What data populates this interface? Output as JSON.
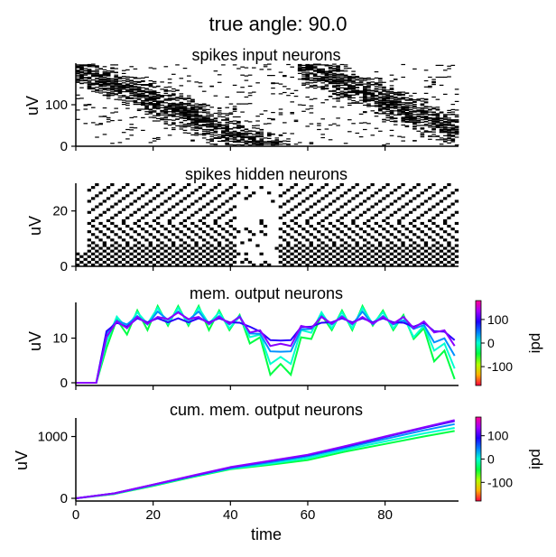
{
  "figure": {
    "suptitle": "true angle: 90.0"
  },
  "chart_data": [
    {
      "type": "heatmap",
      "title": "spikes input neurons",
      "ylabel": "uV",
      "xlim": [
        0,
        99
      ],
      "ylim": [
        0,
        200
      ],
      "yticks": [
        0,
        100
      ],
      "description": "raster of input spikes; two diagonal bands of activity",
      "colors": {
        "spike": "#000000"
      }
    },
    {
      "type": "heatmap",
      "title": "spikes hidden neurons",
      "ylabel": "uV",
      "xlim": [
        0,
        99
      ],
      "ylim": [
        0,
        30
      ],
      "yticks": [
        0,
        20
      ],
      "colors": {
        "spike": "#000000"
      }
    },
    {
      "type": "line",
      "title": "mem. output neurons",
      "ylabel": "uV",
      "xlim": [
        0,
        99
      ],
      "ylim": [
        0,
        18
      ],
      "yticks": [
        0,
        10
      ],
      "colorbar": {
        "label": "ipd",
        "ticks": [
          100,
          0,
          -100
        ],
        "range": [
          -180,
          180
        ],
        "colormap": "gist_rainbow"
      },
      "series": [
        {
          "ipd": -90,
          "color": "#00ff44",
          "values": [
            0,
            0,
            0,
            10,
            12,
            13,
            14,
            14,
            15,
            15,
            15,
            15,
            15,
            14,
            14,
            14,
            13,
            11,
            8,
            4,
            2,
            4,
            8,
            12,
            13,
            14,
            14,
            14,
            15,
            15,
            14,
            14,
            13,
            12,
            10,
            7,
            5,
            3
          ]
        },
        {
          "ipd": 0,
          "color": "#00ffd0",
          "values": [
            0,
            0,
            0,
            11,
            13,
            14,
            14,
            15,
            15,
            15,
            15,
            15,
            15,
            15,
            14,
            14,
            13,
            12,
            9,
            6,
            4,
            6,
            10,
            13,
            14,
            14,
            14,
            14,
            15,
            15,
            14,
            14,
            13,
            12,
            11,
            9,
            7,
            5
          ]
        },
        {
          "ipd": 45,
          "color": "#0090ff",
          "values": [
            0,
            0,
            0,
            12,
            13,
            14,
            14,
            14,
            15,
            15,
            15,
            15,
            15,
            14,
            14,
            14,
            14,
            12,
            10,
            8,
            6,
            8,
            11,
            13,
            14,
            14,
            14,
            14,
            15,
            14,
            14,
            14,
            13,
            13,
            12,
            10,
            9,
            7
          ]
        },
        {
          "ipd": 90,
          "color": "#2a00ff",
          "values": [
            0,
            0,
            0,
            12,
            13,
            13,
            14,
            14,
            14,
            14,
            14,
            14,
            14,
            14,
            14,
            14,
            13,
            13,
            11,
            10,
            9,
            10,
            12,
            13,
            13,
            14,
            14,
            14,
            14,
            14,
            14,
            14,
            13,
            13,
            13,
            12,
            11,
            10
          ]
        },
        {
          "ipd": 135,
          "color": "#8a00ff",
          "values": [
            0,
            0,
            0,
            11,
            13,
            13,
            14,
            14,
            14,
            15,
            15,
            15,
            14,
            14,
            14,
            14,
            14,
            12,
            11,
            9,
            8,
            9,
            12,
            13,
            14,
            14,
            14,
            14,
            14,
            14,
            14,
            14,
            14,
            13,
            13,
            12,
            11,
            9
          ]
        }
      ]
    },
    {
      "type": "line",
      "title": "cum. mem. output neurons",
      "xlabel": "time",
      "ylabel": "uV",
      "xlim": [
        0,
        99
      ],
      "ylim": [
        0,
        1300
      ],
      "yticks": [
        0,
        1000
      ],
      "xticks": [
        0,
        20,
        40,
        60,
        80
      ],
      "colorbar": {
        "label": "ipd",
        "ticks": [
          100,
          0,
          -100
        ],
        "range": [
          -180,
          180
        ],
        "colormap": "gist_rainbow"
      },
      "series": [
        {
          "ipd": -90,
          "color": "#00ff44",
          "x": [
            0,
            10,
            20,
            30,
            40,
            50,
            60,
            70,
            80,
            90,
            98
          ],
          "values": [
            0,
            70,
            200,
            340,
            470,
            540,
            620,
            760,
            880,
            1000,
            1090
          ]
        },
        {
          "ipd": 0,
          "color": "#00ffd0",
          "x": [
            0,
            10,
            20,
            30,
            40,
            50,
            60,
            70,
            80,
            90,
            98
          ],
          "values": [
            0,
            75,
            210,
            350,
            480,
            560,
            650,
            790,
            920,
            1050,
            1140
          ]
        },
        {
          "ipd": 45,
          "color": "#0090ff",
          "x": [
            0,
            10,
            20,
            30,
            40,
            50,
            60,
            70,
            80,
            90,
            98
          ],
          "values": [
            0,
            80,
            215,
            355,
            490,
            580,
            680,
            820,
            960,
            1100,
            1200
          ]
        },
        {
          "ipd": 90,
          "color": "#2a00ff",
          "x": [
            0,
            10,
            20,
            30,
            40,
            50,
            60,
            70,
            80,
            90,
            98
          ],
          "values": [
            0,
            80,
            220,
            360,
            500,
            600,
            700,
            840,
            990,
            1140,
            1250
          ]
        },
        {
          "ipd": 135,
          "color": "#8a00ff",
          "x": [
            0,
            10,
            20,
            30,
            40,
            50,
            60,
            70,
            80,
            90,
            98
          ],
          "values": [
            0,
            80,
            220,
            365,
            505,
            605,
            705,
            850,
            1000,
            1150,
            1265
          ]
        }
      ]
    }
  ]
}
